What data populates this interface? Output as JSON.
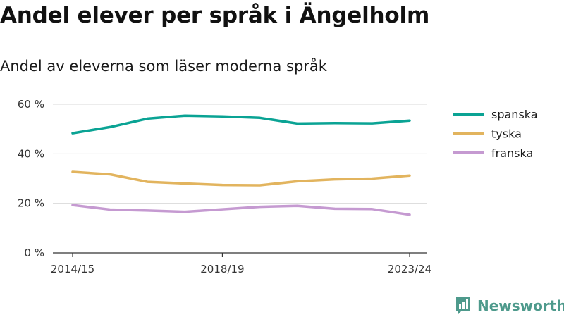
{
  "chart_data": {
    "type": "line",
    "title": "Andel elever per språk i Ängelholm",
    "subtitle": "Andel av eleverna som läser moderna språk",
    "x": [
      "2014/15",
      "2015/16",
      "2016/17",
      "2017/18",
      "2018/19",
      "2019/20",
      "2020/21",
      "2021/22",
      "2022/23",
      "2023/24"
    ],
    "x_tick_labels": [
      "2014/15",
      "2018/19",
      "2023/24"
    ],
    "y_ticks": [
      0,
      20,
      40,
      60
    ],
    "y_tick_labels": [
      "0 %",
      "20 %",
      "40 %",
      "60 %"
    ],
    "ylim": [
      0,
      60
    ],
    "grid": "horizontal",
    "legend": "right",
    "series": [
      {
        "name": "spanska",
        "color": "#0aa394",
        "values": [
          48.3,
          50.8,
          54.2,
          55.4,
          55.1,
          54.5,
          52.2,
          52.4,
          52.3,
          53.4
        ]
      },
      {
        "name": "tyska",
        "color": "#e2b45e",
        "values": [
          32.7,
          31.7,
          28.7,
          28.0,
          27.4,
          27.3,
          28.9,
          29.7,
          30.0,
          31.2
        ]
      },
      {
        "name": "franska",
        "color": "#c59ad1",
        "values": [
          19.3,
          17.5,
          17.1,
          16.6,
          17.6,
          18.6,
          19.0,
          17.8,
          17.7,
          15.4
        ]
      }
    ]
  },
  "brand": {
    "name": "Newsworthy",
    "color": "#4e9a8c"
  }
}
